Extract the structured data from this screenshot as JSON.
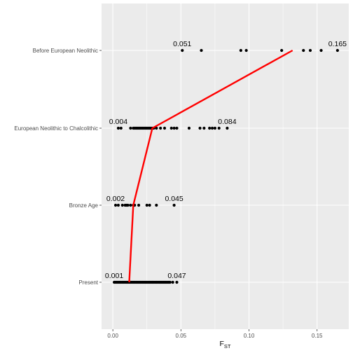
{
  "chart_data": {
    "type": "scatter",
    "title": "",
    "xlabel": "F",
    "xlabel_subscript": "ST",
    "ylabel": "",
    "xlim": [
      -0.0083,
      0.1733
    ],
    "x_ticks": [
      0.0,
      0.05,
      0.1,
      0.15
    ],
    "x_tick_labels": [
      "0.00",
      "0.05",
      "0.10",
      "0.15"
    ],
    "categories": [
      "Present",
      "Bronze Age",
      "European Neolithic to Chalcolithic",
      "Before European Neolithic"
    ],
    "category_labels": [
      "Present",
      "Bronze Age",
      "European Neolithic to Chalcolithic",
      "Before European Neolithic"
    ],
    "grid": true,
    "background": "#ebebeb",
    "point_color": "#000000",
    "line_color": "#ff0000",
    "points": {
      "Present": [
        0.001,
        0.002,
        0.003,
        0.004,
        0.005,
        0.006,
        0.007,
        0.008,
        0.009,
        0.01,
        0.011,
        0.012,
        0.013,
        0.014,
        0.015,
        0.016,
        0.017,
        0.018,
        0.019,
        0.02,
        0.021,
        0.022,
        0.023,
        0.024,
        0.025,
        0.026,
        0.027,
        0.028,
        0.029,
        0.03,
        0.031,
        0.032,
        0.033,
        0.034,
        0.035,
        0.036,
        0.037,
        0.038,
        0.039,
        0.04,
        0.041,
        0.042,
        0.044,
        0.047
      ],
      "Bronze Age": [
        0.002,
        0.004,
        0.007,
        0.009,
        0.01,
        0.011,
        0.013,
        0.015,
        0.016,
        0.019,
        0.025,
        0.027,
        0.032,
        0.045
      ],
      "European Neolithic to Chalcolithic": [
        0.004,
        0.006,
        0.013,
        0.015,
        0.016,
        0.017,
        0.018,
        0.019,
        0.02,
        0.021,
        0.022,
        0.023,
        0.024,
        0.025,
        0.026,
        0.027,
        0.028,
        0.029,
        0.03,
        0.032,
        0.035,
        0.038,
        0.043,
        0.045,
        0.047,
        0.056,
        0.064,
        0.067,
        0.071,
        0.073,
        0.075,
        0.078,
        0.084
      ],
      "Before European Neolithic": [
        0.051,
        0.065,
        0.094,
        0.098,
        0.124,
        0.14,
        0.145,
        0.153,
        0.165
      ]
    },
    "annotations": [
      {
        "category": "Present",
        "x": 0.001,
        "label": "0.001"
      },
      {
        "category": "Present",
        "x": 0.047,
        "label": "0.047"
      },
      {
        "category": "Bronze Age",
        "x": 0.002,
        "label": "0.002"
      },
      {
        "category": "Bronze Age",
        "x": 0.045,
        "label": "0.045"
      },
      {
        "category": "European Neolithic to Chalcolithic",
        "x": 0.004,
        "label": "0.004"
      },
      {
        "category": "European Neolithic to Chalcolithic",
        "x": 0.084,
        "label": "0.084"
      },
      {
        "category": "Before European Neolithic",
        "x": 0.051,
        "label": "0.051"
      },
      {
        "category": "Before European Neolithic",
        "x": 0.165,
        "label": "0.165"
      }
    ],
    "trend_line": [
      {
        "category": "Present",
        "x": 0.012
      },
      {
        "category": "Bronze Age",
        "x": 0.015
      },
      {
        "category": "European Neolithic to Chalcolithic",
        "x": 0.029
      },
      {
        "category": "Before European Neolithic",
        "x": 0.132
      }
    ]
  }
}
